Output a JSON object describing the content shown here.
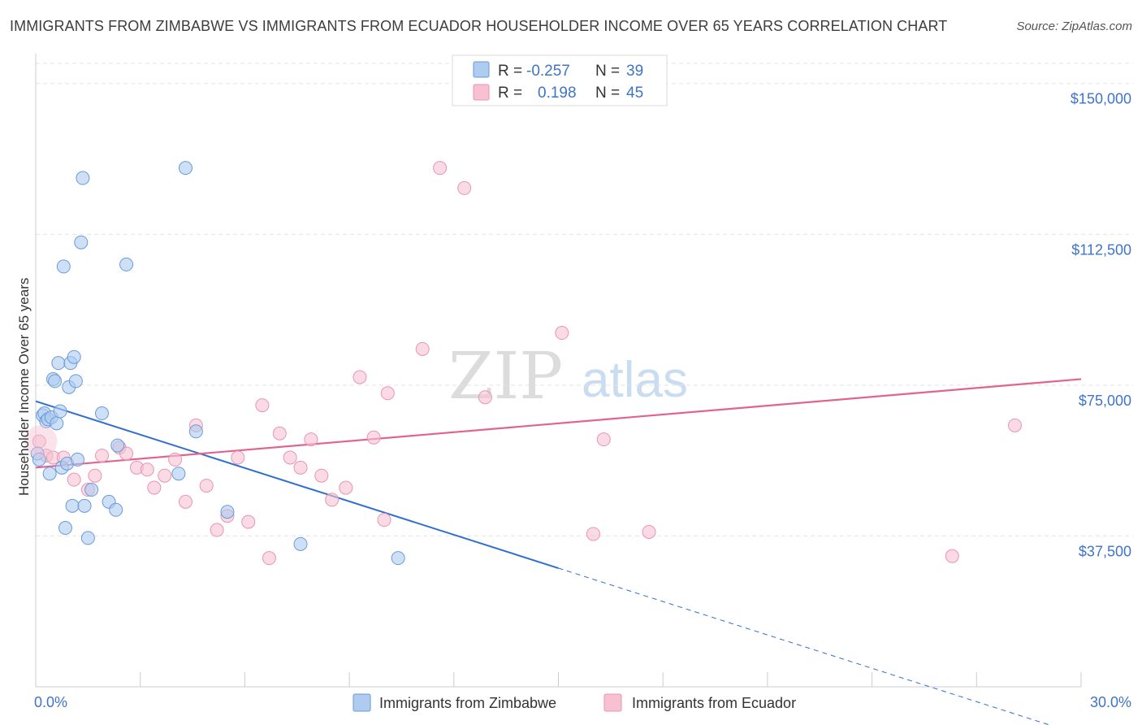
{
  "title": "IMMIGRANTS FROM ZIMBABWE VS IMMIGRANTS FROM ECUADOR HOUSEHOLDER INCOME OVER 65 YEARS CORRELATION CHART",
  "source": "Source: ZipAtlas.com",
  "watermark": {
    "zip": "ZIP",
    "atlas": "atlas"
  },
  "colors": {
    "blue_fill": "#aecbf0",
    "blue_stroke": "#6a9ad8",
    "blue_line": "#2f6fd0",
    "pink_fill": "#f7c1d2",
    "pink_stroke": "#e995b0",
    "pink_line": "#e0648f",
    "axis_text": "#3f74c9",
    "grid": "#e3e3e3"
  },
  "legend": {
    "rows": [
      {
        "r_label": "R =",
        "r_value": "-0.257",
        "n_label": "N =",
        "n_value": "39"
      },
      {
        "r_label": "R =",
        "r_value": "0.198",
        "n_label": "N =",
        "n_value": "45"
      }
    ]
  },
  "chart_data": {
    "type": "scatter",
    "title": "IMMIGRANTS FROM ZIMBABWE VS IMMIGRANTS FROM ECUADOR HOUSEHOLDER INCOME OVER 65 YEARS CORRELATION CHART",
    "xlabel": "",
    "ylabel": "Householder Income Over 65 years",
    "xlim": [
      0,
      30
    ],
    "ylim": [
      0,
      155000
    ],
    "x_tick_labels": [
      {
        "value": 0,
        "label": "0.0%"
      },
      {
        "value": 30,
        "label": "30.0%"
      }
    ],
    "y_ticks": [
      {
        "value": 37500,
        "label": "$37,500"
      },
      {
        "value": 75000,
        "label": "$75,000"
      },
      {
        "value": 112500,
        "label": "$112,500"
      },
      {
        "value": 150000,
        "label": "$150,000"
      }
    ],
    "grid": true,
    "legend_position": "top-center",
    "series": [
      {
        "name": "Immigrants from Zimbabwe",
        "color": "#aecbf0",
        "points": [
          [
            0.05,
            58000
          ],
          [
            0.1,
            56500
          ],
          [
            0.2,
            67500
          ],
          [
            0.25,
            68000
          ],
          [
            0.3,
            66000
          ],
          [
            0.35,
            66500
          ],
          [
            0.4,
            53000
          ],
          [
            0.45,
            67000
          ],
          [
            0.5,
            76500
          ],
          [
            0.55,
            76000
          ],
          [
            0.6,
            65500
          ],
          [
            0.65,
            80500
          ],
          [
            0.7,
            68500
          ],
          [
            0.75,
            54500
          ],
          [
            0.8,
            104500
          ],
          [
            0.85,
            39500
          ],
          [
            0.9,
            55500
          ],
          [
            0.95,
            74500
          ],
          [
            1.0,
            80500
          ],
          [
            1.05,
            45000
          ],
          [
            1.1,
            82000
          ],
          [
            1.15,
            76000
          ],
          [
            1.2,
            56500
          ],
          [
            1.3,
            110500
          ],
          [
            1.35,
            126500
          ],
          [
            1.4,
            45000
          ],
          [
            1.5,
            37000
          ],
          [
            1.6,
            49000
          ],
          [
            1.9,
            68000
          ],
          [
            2.1,
            46000
          ],
          [
            2.3,
            44000
          ],
          [
            2.35,
            60000
          ],
          [
            2.6,
            105000
          ],
          [
            4.1,
            53000
          ],
          [
            4.3,
            129000
          ],
          [
            4.6,
            63500
          ],
          [
            5.5,
            43500
          ],
          [
            7.6,
            35500
          ],
          [
            10.4,
            32000
          ]
        ]
      },
      {
        "name": "Immigrants from Ecuador",
        "color": "#f7c1d2",
        "points": [
          [
            0.1,
            61000
          ],
          [
            0.3,
            57500
          ],
          [
            0.5,
            57000
          ],
          [
            0.8,
            57000
          ],
          [
            1.1,
            51500
          ],
          [
            1.5,
            49000
          ],
          [
            1.7,
            52500
          ],
          [
            1.9,
            57500
          ],
          [
            2.4,
            59500
          ],
          [
            2.6,
            58000
          ],
          [
            2.9,
            54500
          ],
          [
            3.2,
            54000
          ],
          [
            3.4,
            49500
          ],
          [
            3.7,
            52500
          ],
          [
            4.0,
            56500
          ],
          [
            4.3,
            46000
          ],
          [
            4.6,
            65000
          ],
          [
            4.9,
            50000
          ],
          [
            5.2,
            39000
          ],
          [
            5.5,
            42500
          ],
          [
            5.8,
            57000
          ],
          [
            6.1,
            41000
          ],
          [
            6.5,
            70000
          ],
          [
            6.7,
            32000
          ],
          [
            7.0,
            63000
          ],
          [
            7.3,
            57000
          ],
          [
            7.6,
            54500
          ],
          [
            7.9,
            61500
          ],
          [
            8.2,
            52500
          ],
          [
            8.5,
            46500
          ],
          [
            8.9,
            49500
          ],
          [
            9.3,
            77000
          ],
          [
            9.7,
            62000
          ],
          [
            10.0,
            41500
          ],
          [
            10.1,
            73000
          ],
          [
            11.1,
            84000
          ],
          [
            11.6,
            129000
          ],
          [
            12.3,
            124000
          ],
          [
            12.9,
            72000
          ],
          [
            15.1,
            88000
          ],
          [
            16.0,
            38000
          ],
          [
            16.3,
            61500
          ],
          [
            17.6,
            38500
          ],
          [
            26.3,
            32500
          ],
          [
            28.1,
            65000
          ]
        ]
      }
    ],
    "trend_lines": [
      {
        "series": "Immigrants from Zimbabwe",
        "x_start": 0,
        "y_start": 71000,
        "x_solid_end": 15.0,
        "y_solid_end": 29500,
        "x_end": 30,
        "y_end": -12000,
        "dashed_after_solid": true
      },
      {
        "series": "Immigrants from Ecuador",
        "x_start": 0,
        "y_start": 54500,
        "x_end": 30,
        "y_end": 76500
      }
    ]
  },
  "bottom_legend": [
    {
      "label": "Immigrants from Zimbabwe"
    },
    {
      "label": "Immigrants from Ecuador"
    }
  ]
}
